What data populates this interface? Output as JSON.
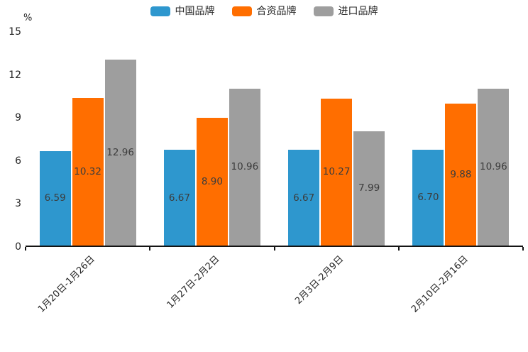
{
  "unit_label": "%",
  "axis_color": "#141414",
  "text_color": "#262626",
  "value_label_color": "#3c3c3c",
  "chart_data": {
    "type": "bar",
    "title": "",
    "xlabel": "",
    "ylabel": "%",
    "ylim": [
      0,
      15
    ],
    "yticks": [
      0,
      3,
      6,
      9,
      12,
      15
    ],
    "grid": false,
    "legend_position": "top",
    "categories": [
      "1月20日-1月26日",
      "1月27日-2月2日",
      "2月3日-2月9日",
      "2月10日-2月16日"
    ],
    "series": [
      {
        "name": "中国品牌",
        "color": "#2e97ce",
        "values": [
          6.59,
          6.67,
          6.67,
          6.7
        ],
        "labels": [
          "6.59",
          "6.67",
          "6.67",
          "6.70"
        ]
      },
      {
        "name": "合资品牌",
        "color": "#ff6e00",
        "values": [
          10.32,
          8.9,
          10.27,
          9.88
        ],
        "labels": [
          "10.32",
          "8.90",
          "10.27",
          "9.88"
        ]
      },
      {
        "name": "进口品牌",
        "color": "#9e9e9e",
        "values": [
          12.96,
          10.96,
          7.99,
          10.96
        ],
        "labels": [
          "12.96",
          "10.96",
          "7.99",
          "10.96"
        ]
      }
    ]
  }
}
